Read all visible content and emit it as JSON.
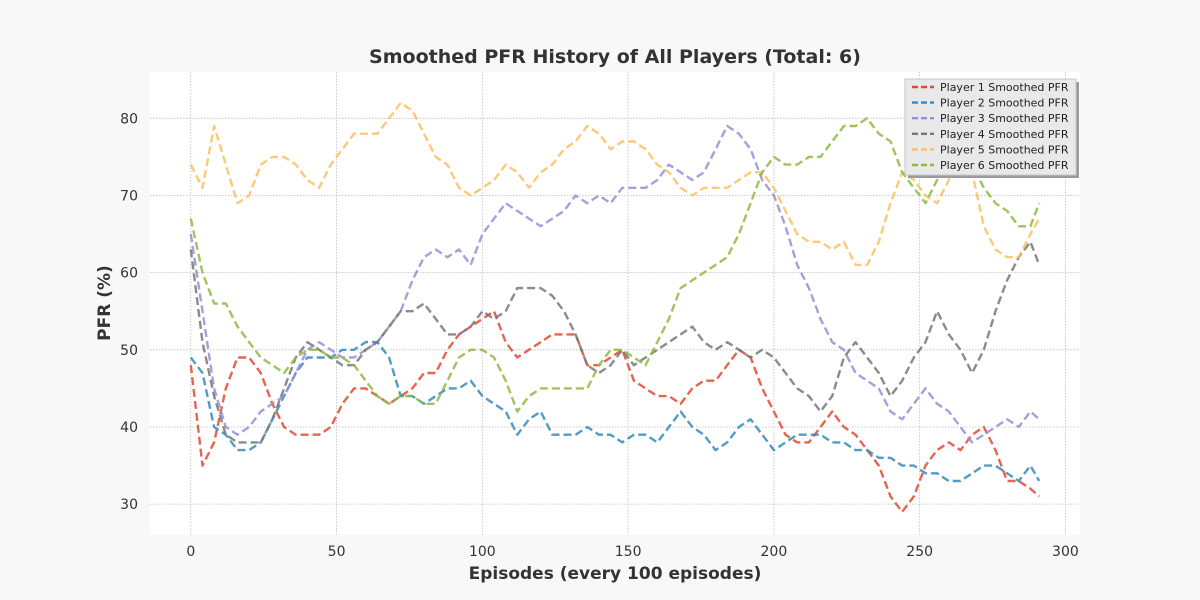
{
  "chart_data": {
    "type": "line",
    "title": "Smoothed PFR History of All Players (Total: 6)",
    "xlabel": "Episodes (every 100 episodes)",
    "ylabel": "PFR (%)",
    "xlim": [
      -14,
      305
    ],
    "ylim": [
      26,
      86
    ],
    "xticks": [
      0,
      50,
      100,
      150,
      200,
      250,
      300
    ],
    "yticks": [
      30,
      40,
      50,
      60,
      70,
      80
    ],
    "grid": true,
    "legend_position": "top-right",
    "line_style": "dashed",
    "series": [
      {
        "name": "Player 1 Smoothed PFR",
        "color": "#e24a33",
        "x": [
          0,
          4,
          8,
          12,
          16,
          20,
          24,
          28,
          32,
          36,
          40,
          44,
          48,
          52,
          56,
          60,
          64,
          68,
          72,
          76,
          80,
          84,
          88,
          92,
          96,
          100,
          104,
          108,
          112,
          116,
          120,
          124,
          128,
          132,
          136,
          140,
          144,
          148,
          152,
          156,
          160,
          164,
          168,
          172,
          176,
          180,
          184,
          188,
          192,
          196,
          200,
          204,
          208,
          212,
          216,
          220,
          224,
          228,
          232,
          236,
          240,
          244,
          248,
          252,
          256,
          260,
          264,
          268,
          272,
          276,
          280,
          284,
          288,
          291
        ],
        "y": [
          48,
          35,
          38,
          45,
          49,
          49,
          47,
          43,
          40,
          39,
          39,
          39,
          40,
          43,
          45,
          45,
          44,
          43,
          44,
          45,
          47,
          47,
          50,
          52,
          53,
          54,
          55,
          51,
          49,
          50,
          51,
          52,
          52,
          52,
          48,
          48,
          49,
          50,
          46,
          45,
          44,
          44,
          43,
          45,
          46,
          46,
          48,
          50,
          49,
          45,
          42,
          39,
          38,
          38,
          40,
          42,
          40,
          39,
          37,
          35,
          31,
          29,
          31,
          35,
          37,
          38,
          37,
          39,
          40,
          37,
          33,
          33,
          32,
          31
        ]
      },
      {
        "name": "Player 2 Smoothed PFR",
        "color": "#348abd",
        "x": [
          0,
          4,
          8,
          12,
          16,
          20,
          24,
          28,
          32,
          36,
          40,
          44,
          48,
          52,
          56,
          60,
          64,
          68,
          72,
          76,
          80,
          84,
          88,
          92,
          96,
          100,
          104,
          108,
          112,
          116,
          120,
          124,
          128,
          132,
          136,
          140,
          144,
          148,
          152,
          156,
          160,
          164,
          168,
          172,
          176,
          180,
          184,
          188,
          192,
          196,
          200,
          204,
          208,
          212,
          216,
          220,
          224,
          228,
          232,
          236,
          240,
          244,
          248,
          252,
          256,
          260,
          264,
          268,
          272,
          276,
          280,
          284,
          288,
          291
        ],
        "y": [
          49,
          47,
          40,
          39,
          37,
          37,
          38,
          41,
          44,
          47,
          49,
          49,
          49,
          50,
          50,
          51,
          51,
          49,
          44,
          44,
          43,
          44,
          45,
          45,
          46,
          44,
          43,
          42,
          39,
          41,
          42,
          39,
          39,
          39,
          40,
          39,
          39,
          38,
          39,
          39,
          38,
          40,
          42,
          40,
          39,
          37,
          38,
          40,
          41,
          39,
          37,
          38,
          39,
          39,
          39,
          38,
          38,
          37,
          37,
          36,
          36,
          35,
          35,
          34,
          34,
          33,
          33,
          34,
          35,
          35,
          34,
          33,
          35,
          33
        ]
      },
      {
        "name": "Player 3 Smoothed PFR",
        "color": "#988ed5",
        "x": [
          0,
          4,
          8,
          12,
          16,
          20,
          24,
          28,
          32,
          36,
          40,
          44,
          48,
          52,
          56,
          60,
          64,
          68,
          72,
          76,
          80,
          84,
          88,
          92,
          96,
          100,
          104,
          108,
          112,
          116,
          120,
          124,
          128,
          132,
          136,
          140,
          144,
          148,
          152,
          156,
          160,
          164,
          168,
          172,
          176,
          180,
          184,
          188,
          192,
          196,
          200,
          204,
          208,
          212,
          216,
          220,
          224,
          228,
          232,
          236,
          240,
          244,
          248,
          252,
          256,
          260,
          264,
          268,
          272,
          276,
          280,
          284,
          288,
          291
        ],
        "y": [
          65,
          55,
          45,
          40,
          39,
          40,
          42,
          43,
          44,
          47,
          50,
          51,
          50,
          49,
          49,
          50,
          51,
          53,
          55,
          59,
          62,
          63,
          62,
          63,
          61,
          65,
          67,
          69,
          68,
          67,
          66,
          67,
          68,
          70,
          69,
          70,
          69,
          71,
          71,
          71,
          72,
          74,
          73,
          72,
          73,
          76,
          79,
          78,
          76,
          72,
          70,
          66,
          61,
          58,
          54,
          51,
          50,
          47,
          46,
          45,
          42,
          41,
          43,
          45,
          43,
          42,
          40,
          38,
          39,
          40,
          41,
          40,
          42,
          41
        ]
      },
      {
        "name": "Player 4 Smoothed PFR",
        "color": "#777777",
        "x": [
          0,
          4,
          8,
          12,
          16,
          20,
          24,
          28,
          32,
          36,
          40,
          44,
          48,
          52,
          56,
          60,
          64,
          68,
          72,
          76,
          80,
          84,
          88,
          92,
          96,
          100,
          104,
          108,
          112,
          116,
          120,
          124,
          128,
          132,
          136,
          140,
          144,
          148,
          152,
          156,
          160,
          164,
          168,
          172,
          176,
          180,
          184,
          188,
          192,
          196,
          200,
          204,
          208,
          212,
          216,
          220,
          224,
          228,
          232,
          236,
          240,
          244,
          248,
          252,
          256,
          260,
          264,
          268,
          272,
          276,
          280,
          284,
          288,
          291
        ],
        "y": [
          63,
          51,
          44,
          39,
          38,
          38,
          38,
          41,
          45,
          49,
          51,
          50,
          49,
          48,
          48,
          50,
          51,
          53,
          55,
          55,
          56,
          54,
          52,
          52,
          53,
          55,
          54,
          55,
          58,
          58,
          58,
          57,
          55,
          52,
          48,
          47,
          48,
          50,
          48,
          49,
          50,
          51,
          52,
          53,
          51,
          50,
          51,
          50,
          49,
          50,
          49,
          47,
          45,
          44,
          42,
          44,
          49,
          51,
          49,
          47,
          44,
          46,
          49,
          51,
          55,
          52,
          50,
          47,
          50,
          55,
          59,
          62,
          64,
          61
        ]
      },
      {
        "name": "Player 5 Smoothed PFR",
        "color": "#fbc15e",
        "x": [
          0,
          4,
          8,
          12,
          16,
          20,
          24,
          28,
          32,
          36,
          40,
          44,
          48,
          52,
          56,
          60,
          64,
          68,
          72,
          76,
          80,
          84,
          88,
          92,
          96,
          100,
          104,
          108,
          112,
          116,
          120,
          124,
          128,
          132,
          136,
          140,
          144,
          148,
          152,
          156,
          160,
          164,
          168,
          172,
          176,
          180,
          184,
          188,
          192,
          196,
          200,
          204,
          208,
          212,
          216,
          220,
          224,
          228,
          232,
          236,
          240,
          244,
          248,
          252,
          256,
          260,
          264,
          268,
          272,
          276,
          280,
          284,
          288,
          291
        ],
        "y": [
          74,
          71,
          79,
          74,
          69,
          70,
          74,
          75,
          75,
          74,
          72,
          71,
          74,
          76,
          78,
          78,
          78,
          80,
          82,
          81,
          78,
          75,
          74,
          71,
          70,
          71,
          72,
          74,
          73,
          71,
          73,
          74,
          76,
          77,
          79,
          78,
          76,
          77,
          77,
          76,
          74,
          73,
          71,
          70,
          71,
          71,
          71,
          72,
          73,
          73,
          71,
          68,
          65,
          64,
          64,
          63,
          64,
          61,
          61,
          64,
          69,
          73,
          72,
          70,
          69,
          72,
          74,
          73,
          66,
          63,
          62,
          62,
          65,
          67
        ]
      },
      {
        "name": "Player 6 Smoothed PFR",
        "color": "#8eba42",
        "x": [
          0,
          4,
          8,
          12,
          16,
          20,
          24,
          28,
          32,
          36,
          40,
          44,
          48,
          52,
          56,
          60,
          64,
          68,
          72,
          76,
          80,
          84,
          88,
          92,
          96,
          100,
          104,
          108,
          112,
          116,
          120,
          124,
          128,
          132,
          136,
          140,
          144,
          148,
          152,
          156,
          160,
          164,
          168,
          172,
          176,
          180,
          184,
          188,
          192,
          196,
          200,
          204,
          208,
          212,
          216,
          220,
          224,
          228,
          232,
          236,
          240,
          244,
          248,
          252,
          256,
          260,
          264,
          268,
          272,
          276,
          280,
          284,
          288,
          291
        ],
        "y": [
          67,
          60,
          56,
          56,
          53,
          51,
          49,
          48,
          47,
          49,
          50,
          50,
          49,
          49,
          48,
          46,
          44,
          43,
          44,
          44,
          43,
          43,
          46,
          49,
          50,
          50,
          49,
          46,
          42,
          44,
          45,
          45,
          45,
          45,
          45,
          48,
          50,
          50,
          49,
          48,
          51,
          54,
          58,
          59,
          60,
          61,
          62,
          65,
          69,
          73,
          75,
          74,
          74,
          75,
          75,
          77,
          79,
          79,
          80,
          78,
          77,
          73,
          71,
          69,
          72,
          73,
          76,
          74,
          71,
          69,
          68,
          66,
          66,
          69
        ]
      }
    ]
  }
}
